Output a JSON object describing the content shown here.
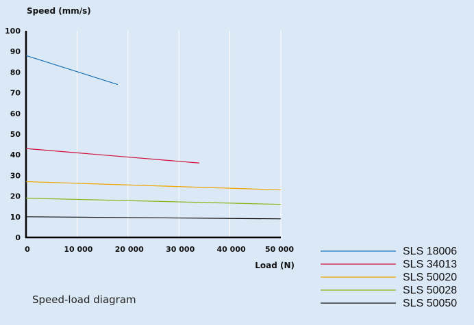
{
  "chart_data": {
    "type": "line",
    "ylabel": "Speed (mm/s)",
    "xlabel": "Load (N)",
    "caption": "Speed-load diagram",
    "xlim": [
      0,
      50000
    ],
    "ylim": [
      0,
      100
    ],
    "x_ticks": [
      0,
      10000,
      20000,
      30000,
      40000,
      50000
    ],
    "x_tick_labels": [
      "0",
      "10 000",
      "20 000",
      "30 000",
      "40 000",
      "50 000"
    ],
    "y_ticks": [
      0,
      10,
      20,
      30,
      40,
      50,
      60,
      70,
      80,
      90,
      100
    ],
    "y_tick_labels": [
      "0",
      "10",
      "20",
      "30",
      "40",
      "50",
      "60",
      "70",
      "80",
      "90",
      "100"
    ],
    "grid": true,
    "legend_position": "bottom-right",
    "series": [
      {
        "name": "SLS 18006",
        "color": "#1a6fb4",
        "x": [
          0,
          18000
        ],
        "y": [
          88,
          74
        ]
      },
      {
        "name": "SLS 34013",
        "color": "#d0103a",
        "x": [
          0,
          34000
        ],
        "y": [
          43,
          36
        ]
      },
      {
        "name": "SLS 50020",
        "color": "#f0a400",
        "x": [
          0,
          50000
        ],
        "y": [
          27,
          23
        ]
      },
      {
        "name": "SLS 50028",
        "color": "#86b517",
        "x": [
          0,
          50000
        ],
        "y": [
          19,
          16
        ]
      },
      {
        "name": "SLS 50050",
        "color": "#111111",
        "x": [
          0,
          50000
        ],
        "y": [
          10,
          9
        ]
      }
    ]
  }
}
